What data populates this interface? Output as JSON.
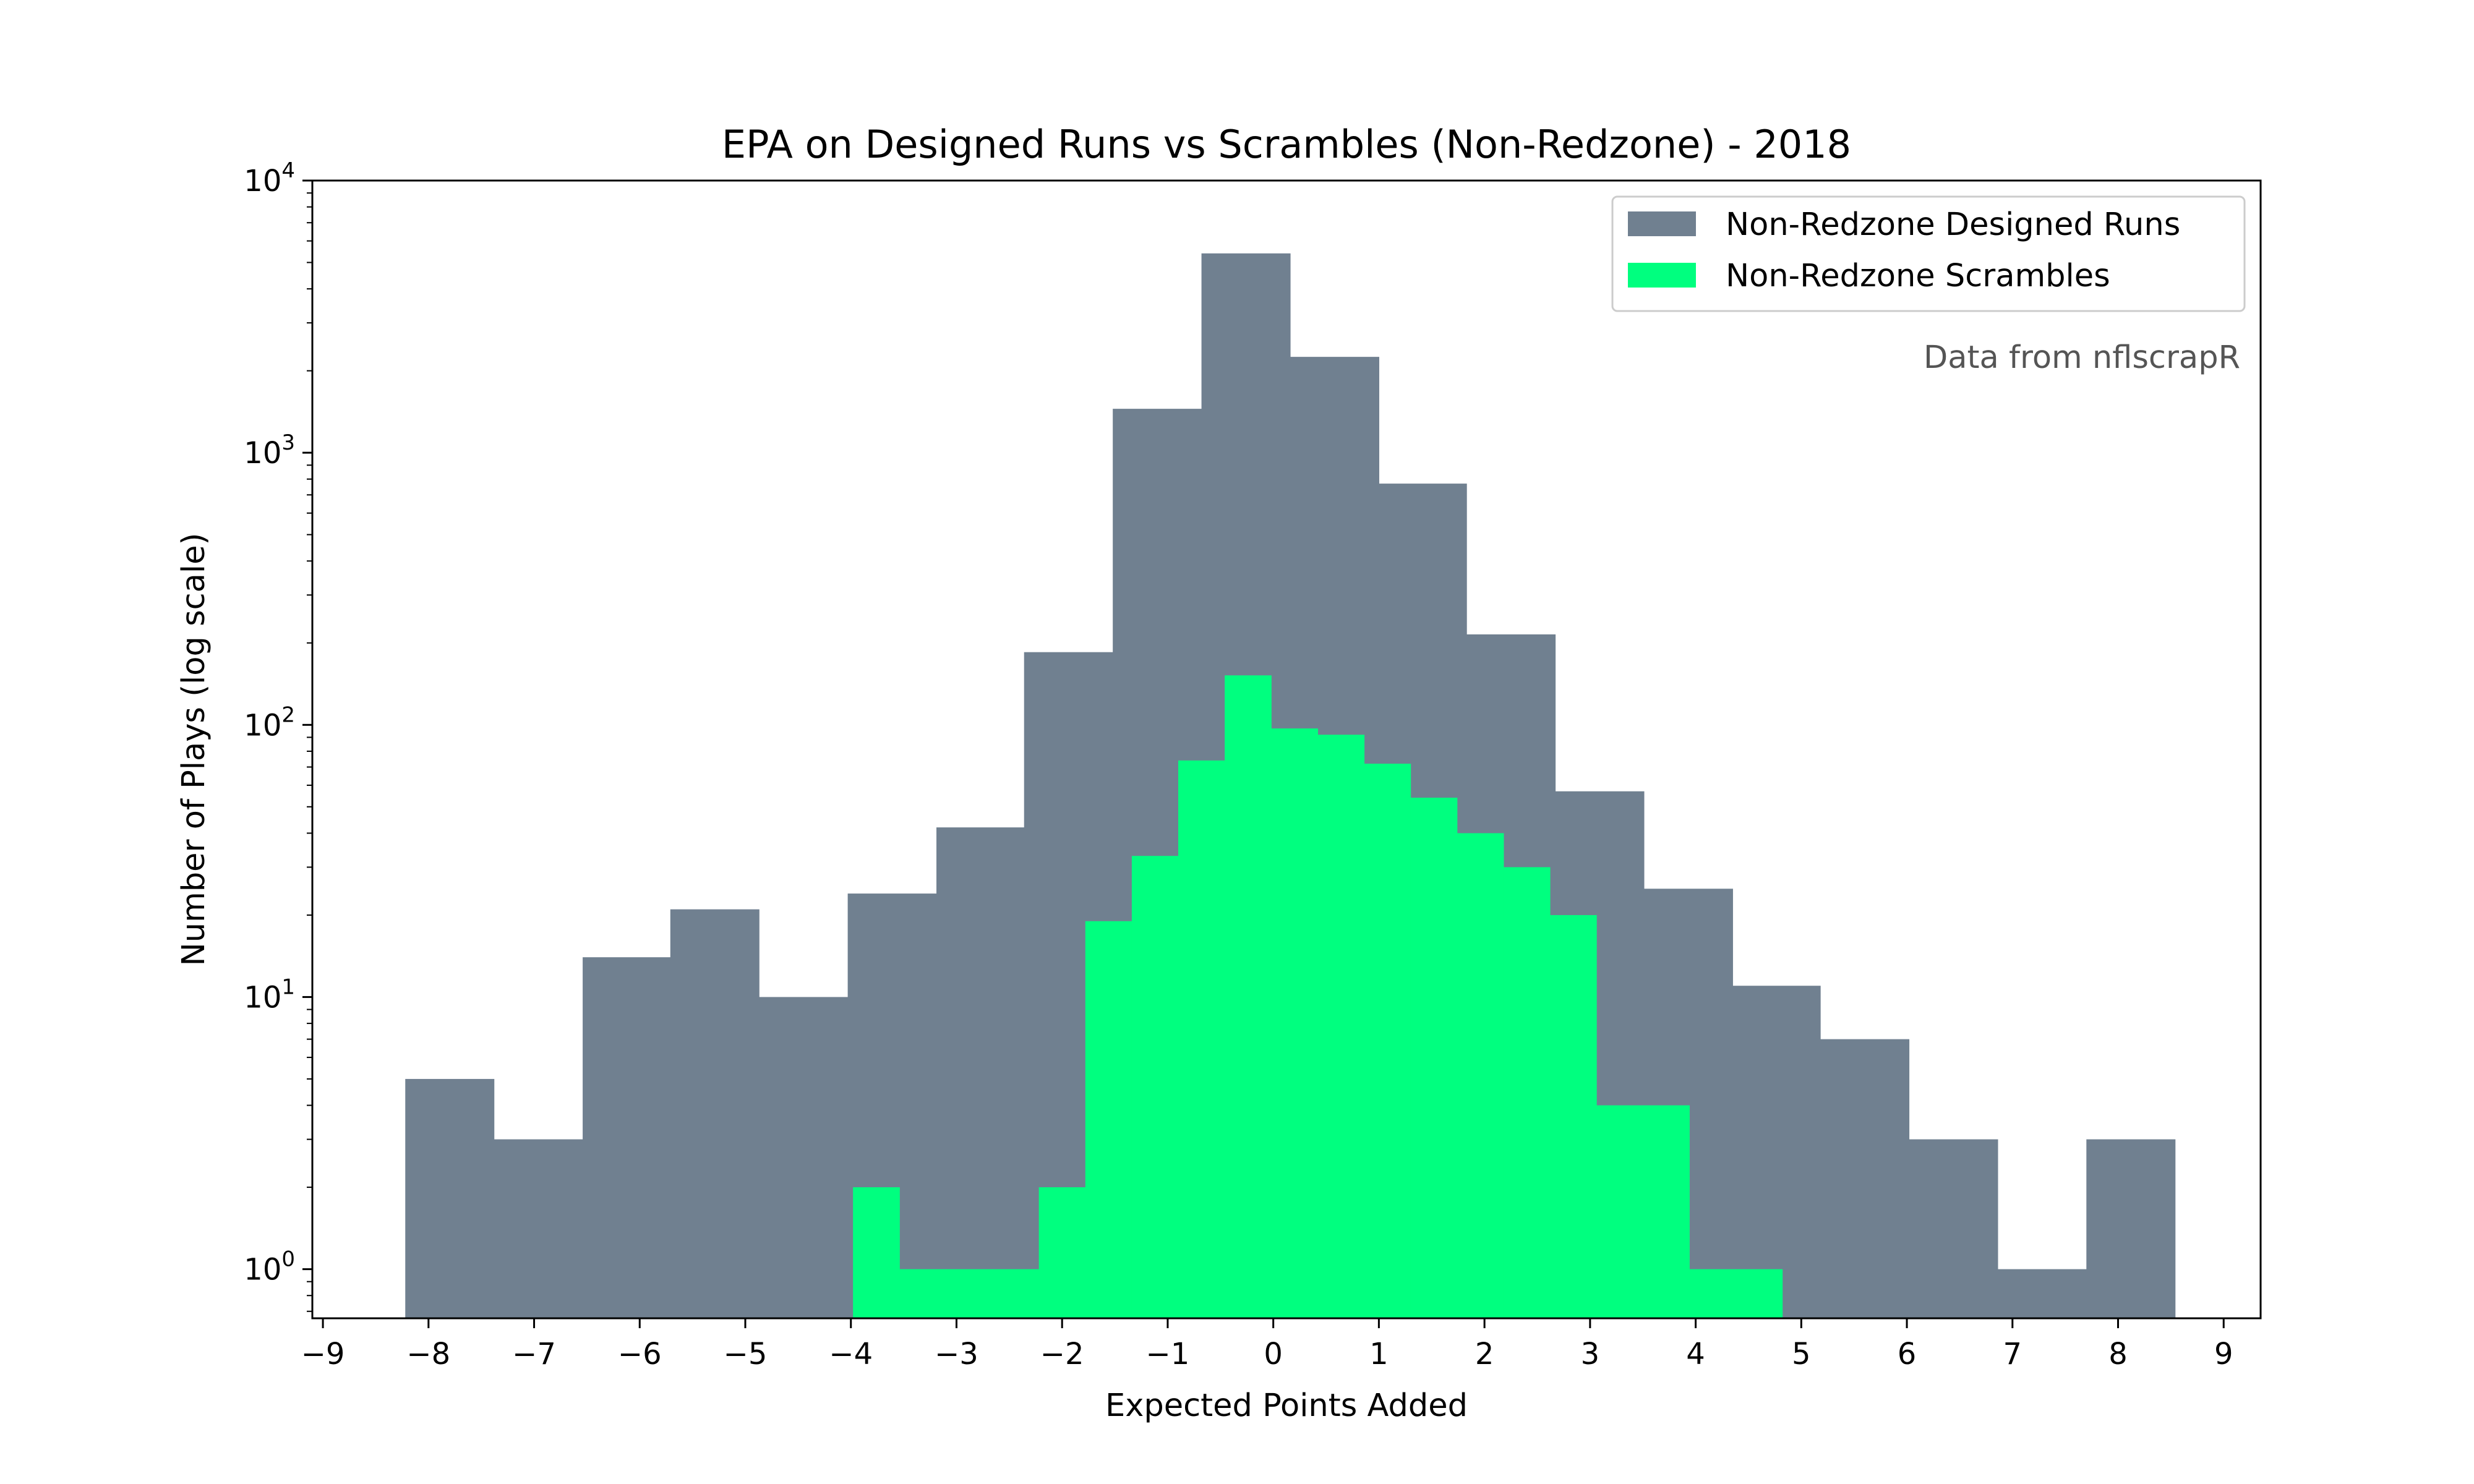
{
  "chart_data": {
    "type": "bar",
    "title": "EPA on Designed Runs vs Scrambles (Non-Redzone) - 2018",
    "xlabel": "Expected Points Added",
    "ylabel": "Number of Plays (log scale)",
    "yscale": "log",
    "xlim": [
      -9.1,
      9.35
    ],
    "ylim": [
      0.66,
      10000
    ],
    "x_ticks": [
      "−9",
      "−8",
      "−7",
      "−6",
      "−5",
      "−4",
      "−3",
      "−2",
      "−1",
      "0",
      "1",
      "2",
      "3",
      "4",
      "5",
      "6",
      "7",
      "8",
      "9"
    ],
    "y_ticks": [
      {
        "base": "10",
        "exp": "0",
        "value": 1
      },
      {
        "base": "10",
        "exp": "1",
        "value": 10
      },
      {
        "base": "10",
        "exp": "2",
        "value": 100
      },
      {
        "base": "10",
        "exp": "3",
        "value": 1000
      },
      {
        "base": "10",
        "exp": "4",
        "value": 10000
      }
    ],
    "grid": false,
    "legend_position": "top-right",
    "annotation": "Data from nflscrapR",
    "series": [
      {
        "name": "Non-Redzone Designed Runs",
        "color": "#708090",
        "bin_edges": [
          -8.22,
          -7.38,
          -6.54,
          -5.71,
          -4.87,
          -4.03,
          -3.19,
          -2.36,
          -1.52,
          -0.68,
          0.16,
          1.0,
          1.83,
          2.67,
          3.51,
          4.35,
          5.18,
          6.02,
          6.86,
          7.7,
          8.54
        ],
        "values": [
          5,
          3,
          14,
          21,
          10,
          24,
          42,
          185,
          1450,
          5400,
          2250,
          770,
          215,
          57,
          25,
          11,
          7,
          3,
          1,
          3
        ]
      },
      {
        "name": "Non-Redzone Scrambles",
        "color": "#00ff7f",
        "bin_edges": [
          -3.98,
          -3.54,
          -3.1,
          -2.66,
          -2.22,
          -1.78,
          -1.34,
          -0.9,
          -0.46,
          -0.02,
          0.42,
          0.86,
          1.3,
          1.74,
          2.18,
          2.62,
          3.06,
          3.5,
          3.94,
          4.38,
          4.82
        ],
        "values": [
          2,
          1,
          1,
          1,
          2,
          19,
          33,
          74,
          152,
          97,
          92,
          72,
          54,
          40,
          30,
          20,
          4,
          4,
          1,
          1
        ]
      }
    ]
  }
}
